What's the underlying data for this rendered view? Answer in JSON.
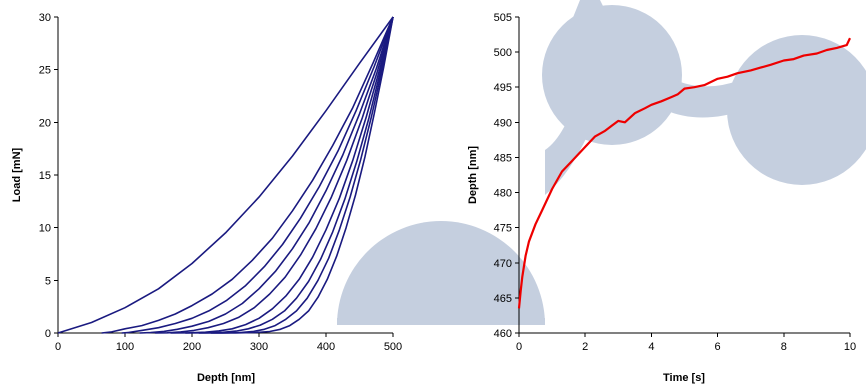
{
  "chart_data": [
    {
      "type": "line",
      "xlabel": "Depth [nm]",
      "ylabel": "Load [mN]",
      "xlim": [
        0,
        500
      ],
      "ylim": [
        0,
        30
      ],
      "x_ticks": [
        "0",
        "100",
        "200",
        "300",
        "400",
        "500"
      ],
      "y_ticks": [
        "0",
        "5",
        "10",
        "15",
        "20",
        "25",
        "30"
      ],
      "grid": false,
      "line_color": "#1a1a80",
      "series": [
        {
          "x": [
            0,
            50,
            100,
            150,
            200,
            250,
            300,
            350,
            400,
            450,
            500
          ],
          "y": [
            0,
            1.0,
            2.4,
            4.2,
            6.6,
            9.5,
            12.9,
            16.8,
            21.1,
            25.6,
            30
          ]
        },
        {
          "x": [
            500,
            470,
            440,
            410,
            380,
            350,
            320,
            290,
            260,
            230,
            200,
            175,
            150,
            125,
            100,
            80,
            65
          ],
          "y": [
            30,
            25.6,
            21.4,
            17.8,
            14.5,
            11.6,
            9.0,
            6.9,
            5.1,
            3.7,
            2.6,
            1.8,
            1.2,
            0.7,
            0.4,
            0.1,
            0
          ]
        },
        {
          "x": [
            500,
            472,
            445,
            418,
            390,
            362,
            335,
            308,
            280,
            252,
            225,
            200,
            175,
            150,
            125,
            105,
            95
          ],
          "y": [
            30,
            25.3,
            21.1,
            17.3,
            13.9,
            10.9,
            8.4,
            6.3,
            4.5,
            3.1,
            2.1,
            1.4,
            0.9,
            0.5,
            0.25,
            0.05,
            0
          ]
        },
        {
          "x": [
            500,
            475,
            450,
            425,
            400,
            375,
            350,
            325,
            300,
            275,
            250,
            225,
            200,
            178,
            158,
            138,
            122
          ],
          "y": [
            30,
            25.1,
            20.8,
            16.9,
            13.5,
            10.5,
            8.0,
            5.9,
            4.2,
            2.8,
            1.8,
            1.1,
            0.65,
            0.35,
            0.15,
            0.04,
            0
          ]
        },
        {
          "x": [
            500,
            477,
            454,
            431,
            408,
            385,
            362,
            339,
            316,
            293,
            270,
            247,
            224,
            203,
            183,
            163,
            145
          ],
          "y": [
            30,
            24.9,
            20.4,
            16.4,
            12.9,
            9.9,
            7.4,
            5.3,
            3.7,
            2.4,
            1.5,
            0.9,
            0.5,
            0.25,
            0.1,
            0.02,
            0
          ]
        },
        {
          "x": [
            500,
            480,
            460,
            440,
            420,
            400,
            380,
            360,
            340,
            320,
            300,
            280,
            260,
            240,
            220,
            195,
            168
          ],
          "y": [
            30,
            25.0,
            20.5,
            16.4,
            12.8,
            9.8,
            7.2,
            5.1,
            3.5,
            2.3,
            1.4,
            0.8,
            0.4,
            0.2,
            0.08,
            0.02,
            0
          ]
        },
        {
          "x": [
            500,
            482,
            464,
            446,
            428,
            410,
            392,
            374,
            356,
            338,
            320,
            302,
            284,
            266,
            246,
            220,
            190
          ],
          "y": [
            30,
            25.0,
            20.4,
            16.3,
            12.7,
            9.6,
            7.0,
            4.9,
            3.3,
            2.1,
            1.3,
            0.75,
            0.4,
            0.18,
            0.07,
            0.02,
            0
          ]
        },
        {
          "x": [
            500,
            484,
            468,
            452,
            436,
            420,
            404,
            388,
            372,
            356,
            340,
            324,
            308,
            292,
            272,
            245,
            210
          ],
          "y": [
            30,
            25.1,
            20.6,
            16.5,
            12.9,
            9.8,
            7.1,
            5.0,
            3.3,
            2.1,
            1.3,
            0.7,
            0.35,
            0.15,
            0.05,
            0.01,
            0
          ]
        },
        {
          "x": [
            500,
            486,
            472,
            458,
            444,
            430,
            416,
            402,
            388,
            374,
            360,
            346,
            332,
            316,
            295,
            265,
            228
          ],
          "y": [
            30,
            25.2,
            20.8,
            16.7,
            13.1,
            10.0,
            7.3,
            5.1,
            3.4,
            2.1,
            1.3,
            0.7,
            0.35,
            0.14,
            0.05,
            0.01,
            0
          ]
        }
      ]
    },
    {
      "type": "line",
      "xlabel": "Time [s]",
      "ylabel": "Depth [nm]",
      "xlim": [
        0,
        10
      ],
      "ylim": [
        460,
        505
      ],
      "x_ticks": [
        "0",
        "2",
        "4",
        "6",
        "8",
        "10"
      ],
      "y_ticks": [
        "460",
        "465",
        "470",
        "475",
        "480",
        "485",
        "490",
        "495",
        "500",
        "505"
      ],
      "grid": false,
      "line_color": "#ee0000",
      "series": [
        {
          "x": [
            0,
            0.05,
            0.1,
            0.2,
            0.3,
            0.5,
            0.7,
            1.0,
            1.3,
            1.6,
            2.0,
            2.3,
            2.6,
            2.8,
            3.0,
            3.2,
            3.5,
            3.8,
            4.0,
            4.3,
            4.6,
            4.8,
            5.0,
            5.3,
            5.6,
            6.0,
            6.3,
            6.6,
            7.0,
            7.3,
            7.6,
            8.0,
            8.3,
            8.6,
            9.0,
            9.3,
            9.6,
            9.9,
            10.0
          ],
          "y": [
            463.5,
            466,
            468,
            471,
            473,
            475.5,
            477.5,
            480.5,
            483,
            484.5,
            486.5,
            488,
            488.8,
            489.5,
            490.2,
            490,
            491.3,
            492,
            492.5,
            493,
            493.6,
            494,
            494.8,
            495,
            495.3,
            496.2,
            496.5,
            497,
            497.4,
            497.8,
            498.2,
            498.8,
            499,
            499.5,
            499.8,
            500.3,
            500.6,
            501,
            502
          ]
        }
      ]
    }
  ]
}
